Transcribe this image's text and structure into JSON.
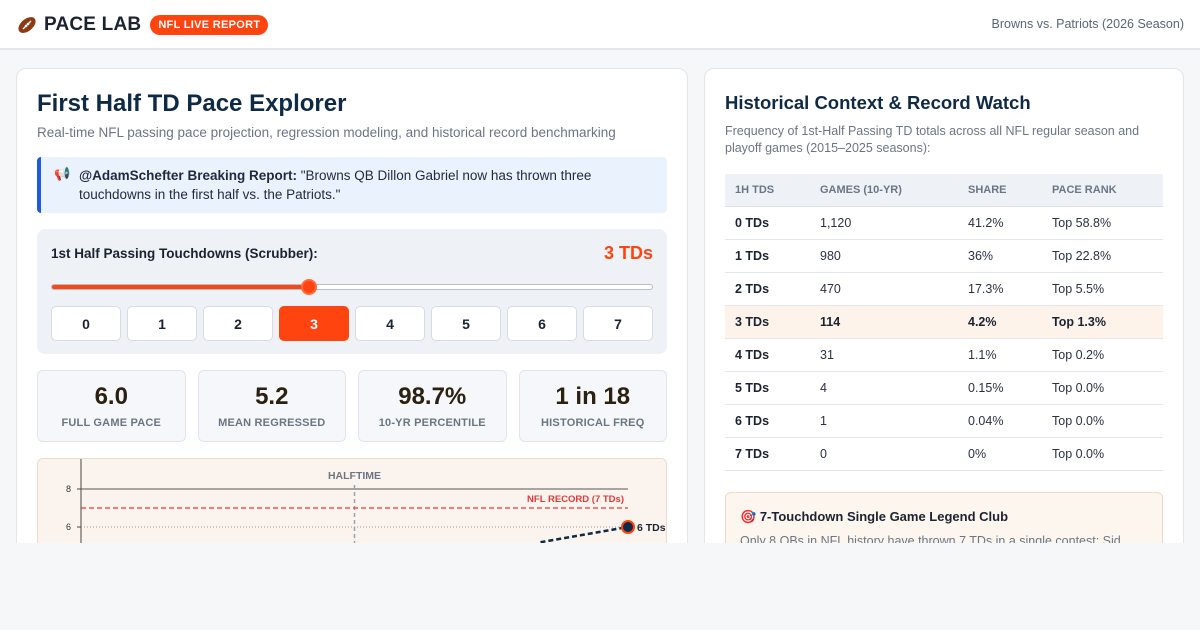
{
  "header": {
    "brand": "PACE LAB",
    "badge": "NFL LIVE REPORT",
    "matchup": "Browns vs. Patriots (2026 Season)"
  },
  "explorer": {
    "title": "First Half TD Pace Explorer",
    "subtitle": "Real-time NFL passing pace projection, regression modeling, and historical record benchmarking",
    "quote_source": "@AdamSchefter Breaking Report:",
    "quote_text": " \"Browns QB Dillon Gabriel now has thrown three touchdowns in the first half vs. the Patriots.\"",
    "scrubber": {
      "label": "1st Half Passing Touchdowns (Scrubber):",
      "value_text": "3 TDs",
      "value": 3,
      "min": 0,
      "max": 7,
      "steps": [
        "0",
        "1",
        "2",
        "3",
        "4",
        "5",
        "6",
        "7"
      ],
      "active_step": 3
    },
    "stats": [
      {
        "value": "6.0",
        "label": "FULL GAME PACE"
      },
      {
        "value": "5.2",
        "label": "MEAN REGRESSED"
      },
      {
        "value": "98.7%",
        "label": "10-YR PERCENTILE"
      },
      {
        "value": "1 in 18",
        "label": "HISTORICAL FREQ"
      }
    ]
  },
  "chart_data": {
    "type": "line",
    "halftime_label": "HALFTIME",
    "record_label": "NFL RECORD (7 TDs)",
    "record_value": 7,
    "yticks": [
      "8",
      "6"
    ],
    "ylim": [
      0,
      8
    ],
    "xlim": [
      0,
      1
    ],
    "halftime_x": 0.5,
    "endpoint": {
      "x": 1,
      "y": 6,
      "label": "6 TDs"
    },
    "projection_segment": {
      "x": [
        0.84,
        1
      ],
      "y": [
        5.2,
        6
      ]
    }
  },
  "history": {
    "title": "Historical Context & Record Watch",
    "subtitle": "Frequency of 1st-Half Passing TD totals across all NFL regular season and playoff games (2015–2025 seasons):",
    "columns": [
      "1H TDS",
      "GAMES (10-YR)",
      "SHARE",
      "PACE RANK"
    ],
    "rows": [
      {
        "tds": "0 TDs",
        "games": "1,120",
        "share": "41.2%",
        "rank": "Top 58.8%"
      },
      {
        "tds": "1 TDs",
        "games": "980",
        "share": "36%",
        "rank": "Top 22.8%"
      },
      {
        "tds": "2 TDs",
        "games": "470",
        "share": "17.3%",
        "rank": "Top 5.5%"
      },
      {
        "tds": "3 TDs",
        "games": "114",
        "share": "4.2%",
        "rank": "Top 1.3%"
      },
      {
        "tds": "4 TDs",
        "games": "31",
        "share": "1.1%",
        "rank": "Top 0.2%"
      },
      {
        "tds": "5 TDs",
        "games": "4",
        "share": "0.15%",
        "rank": "Top 0.0%"
      },
      {
        "tds": "6 TDs",
        "games": "1",
        "share": "0.04%",
        "rank": "Top 0.0%"
      },
      {
        "tds": "7 TDs",
        "games": "0",
        "share": "0%",
        "rank": "Top 0.0%"
      }
    ],
    "highlight_row": 3,
    "legend_title": "7-Touchdown Single Game Legend Club",
    "legend_text": "Only 8 QBs in NFL history have thrown 7 TDs in a single contest: Sid"
  },
  "colors": {
    "accent": "#ff4410",
    "navy": "#0f2a44",
    "record_line": "#e23a3a"
  },
  "icons": {
    "brand": "football-icon",
    "quote": "megaphone-icon",
    "legend": "target-icon"
  }
}
